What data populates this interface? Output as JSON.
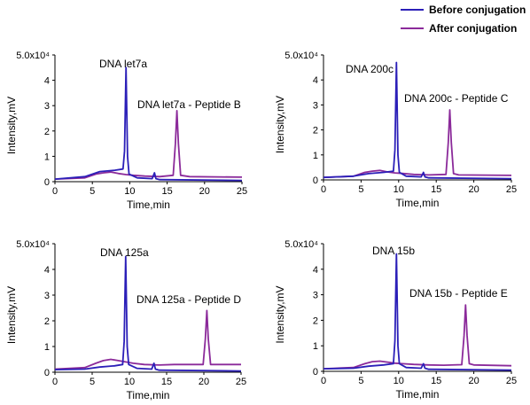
{
  "legend": {
    "placement": "top-right",
    "items": [
      {
        "label": "Before conjugation",
        "color": "#2b1fb8"
      },
      {
        "label": "After conjugation",
        "color": "#8b2a9a"
      }
    ]
  },
  "chart_data": [
    {
      "type": "line",
      "xlabel": "Time,min",
      "ylabel": "Intensity,mV",
      "xlim": [
        0,
        25
      ],
      "ylim": [
        0,
        5
      ],
      "xticks": [
        "0",
        "5",
        "10",
        "15",
        "20",
        "25"
      ],
      "yticks": [
        "0",
        "1",
        "2",
        "3",
        "4",
        "5.0x10⁴"
      ],
      "annotations": [
        {
          "text": "DNA let7a",
          "x": 9.5,
          "y": 4.5
        },
        {
          "text": "DNA let7a - Peptide B",
          "x": 16.3,
          "y": 2.8
        }
      ],
      "series": [
        {
          "name": "Before conjugation",
          "color": "#2b1fb8",
          "x": [
            0,
            4,
            6,
            8,
            9.1,
            9.3,
            9.5,
            9.7,
            9.9,
            11,
            13,
            13.3,
            13.5,
            14,
            25
          ],
          "y": [
            0.1,
            0.2,
            0.4,
            0.45,
            0.5,
            1.2,
            4.5,
            1.0,
            0.3,
            0.15,
            0.12,
            0.35,
            0.12,
            0.08,
            0.05
          ]
        },
        {
          "name": "After conjugation",
          "color": "#8b2a9a",
          "x": [
            0,
            4,
            5.5,
            6.5,
            7.5,
            8.5,
            9.5,
            10.5,
            12,
            14,
            15.8,
            16.1,
            16.3,
            16.5,
            16.8,
            18,
            25
          ],
          "y": [
            0.1,
            0.15,
            0.3,
            0.35,
            0.38,
            0.32,
            0.28,
            0.25,
            0.22,
            0.2,
            0.25,
            1.5,
            2.8,
            1.5,
            0.25,
            0.2,
            0.18
          ]
        }
      ]
    },
    {
      "type": "line",
      "xlabel": "Time,min",
      "ylabel": "Intensity,mV",
      "xlim": [
        0,
        25
      ],
      "ylim": [
        0,
        5
      ],
      "xticks": [
        "0",
        "5",
        "10",
        "15",
        "20",
        "25"
      ],
      "yticks": [
        "0",
        "1",
        "2",
        "3",
        "4",
        "5.0x10⁴"
      ],
      "annotations": [
        {
          "text": "DNA 200c",
          "x": 9.7,
          "y": 4.7
        },
        {
          "text": "DNA 200c - Peptide C",
          "x": 16.8,
          "y": 2.8
        }
      ],
      "series": [
        {
          "name": "Before conjugation",
          "color": "#2b1fb8",
          "x": [
            0,
            4,
            6,
            8,
            9.3,
            9.5,
            9.7,
            9.9,
            10.1,
            11,
            13,
            13.3,
            13.5,
            14,
            25
          ],
          "y": [
            0.1,
            0.15,
            0.25,
            0.3,
            0.35,
            1.2,
            4.7,
            1.0,
            0.3,
            0.15,
            0.12,
            0.3,
            0.12,
            0.08,
            0.05
          ]
        },
        {
          "name": "After conjugation",
          "color": "#8b2a9a",
          "x": [
            0,
            4,
            5.5,
            6.5,
            7.5,
            8.5,
            9.5,
            10.5,
            12,
            14,
            16.3,
            16.6,
            16.8,
            17.0,
            17.3,
            18,
            25
          ],
          "y": [
            0.1,
            0.15,
            0.3,
            0.35,
            0.38,
            0.32,
            0.28,
            0.26,
            0.22,
            0.2,
            0.22,
            1.5,
            2.8,
            1.5,
            0.25,
            0.2,
            0.18
          ]
        }
      ]
    },
    {
      "type": "line",
      "xlabel": "Time,min",
      "ylabel": "Intensity,mV",
      "xlim": [
        0,
        25
      ],
      "ylim": [
        0,
        5
      ],
      "xticks": [
        "0",
        "5",
        "10",
        "15",
        "20",
        "25"
      ],
      "yticks": [
        "0",
        "1",
        "2",
        "3",
        "4",
        "5.0x10⁴"
      ],
      "annotations": [
        {
          "text": "DNA 125a",
          "x": 9.5,
          "y": 4.5
        },
        {
          "text": "DNA 125a - Peptide D",
          "x": 20.4,
          "y": 2.4
        }
      ],
      "series": [
        {
          "name": "Before conjugation",
          "color": "#2b1fb8",
          "x": [
            0,
            4,
            6,
            8,
            9.1,
            9.3,
            9.5,
            9.7,
            9.9,
            11,
            13,
            13.3,
            13.5,
            14,
            25
          ],
          "y": [
            0.1,
            0.12,
            0.2,
            0.25,
            0.3,
            1.2,
            4.5,
            1.0,
            0.3,
            0.15,
            0.12,
            0.35,
            0.12,
            0.08,
            0.05
          ]
        },
        {
          "name": "After conjugation",
          "color": "#8b2a9a",
          "x": [
            0,
            4,
            5.5,
            6.5,
            7.5,
            8.5,
            9.5,
            10.5,
            12,
            14,
            16,
            19.9,
            20.2,
            20.4,
            20.6,
            20.9,
            22,
            25
          ],
          "y": [
            0.12,
            0.18,
            0.35,
            0.45,
            0.5,
            0.45,
            0.4,
            0.35,
            0.3,
            0.28,
            0.3,
            0.3,
            1.3,
            2.4,
            1.3,
            0.3,
            0.3,
            0.3
          ]
        }
      ]
    },
    {
      "type": "line",
      "xlabel": "Time,min",
      "ylabel": "Intensity,mV",
      "xlim": [
        0,
        25
      ],
      "ylim": [
        0,
        5
      ],
      "xticks": [
        "0",
        "5",
        "10",
        "15",
        "20",
        "25"
      ],
      "yticks": [
        "0",
        "1",
        "2",
        "3",
        "4",
        "5.0x10⁴"
      ],
      "annotations": [
        {
          "text": "DNA 15b",
          "x": 9.7,
          "y": 4.6
        },
        {
          "text": "DNA 15b - Peptide E",
          "x": 18.9,
          "y": 2.6
        }
      ],
      "series": [
        {
          "name": "Before conjugation",
          "color": "#2b1fb8",
          "x": [
            0,
            4,
            6,
            8,
            9.3,
            9.5,
            9.7,
            9.9,
            10.1,
            11,
            13,
            13.3,
            13.5,
            14,
            25
          ],
          "y": [
            0.1,
            0.12,
            0.2,
            0.25,
            0.3,
            1.2,
            4.6,
            1.0,
            0.3,
            0.15,
            0.12,
            0.3,
            0.12,
            0.08,
            0.05
          ]
        },
        {
          "name": "After conjugation",
          "color": "#8b2a9a",
          "x": [
            0,
            4,
            5.5,
            6.5,
            7.5,
            8.5,
            9.5,
            10.5,
            12,
            14,
            16,
            18.4,
            18.7,
            18.9,
            19.1,
            19.4,
            20,
            25
          ],
          "y": [
            0.1,
            0.15,
            0.3,
            0.38,
            0.4,
            0.36,
            0.32,
            0.3,
            0.27,
            0.25,
            0.24,
            0.26,
            1.4,
            2.6,
            1.4,
            0.3,
            0.25,
            0.22
          ]
        }
      ]
    }
  ]
}
